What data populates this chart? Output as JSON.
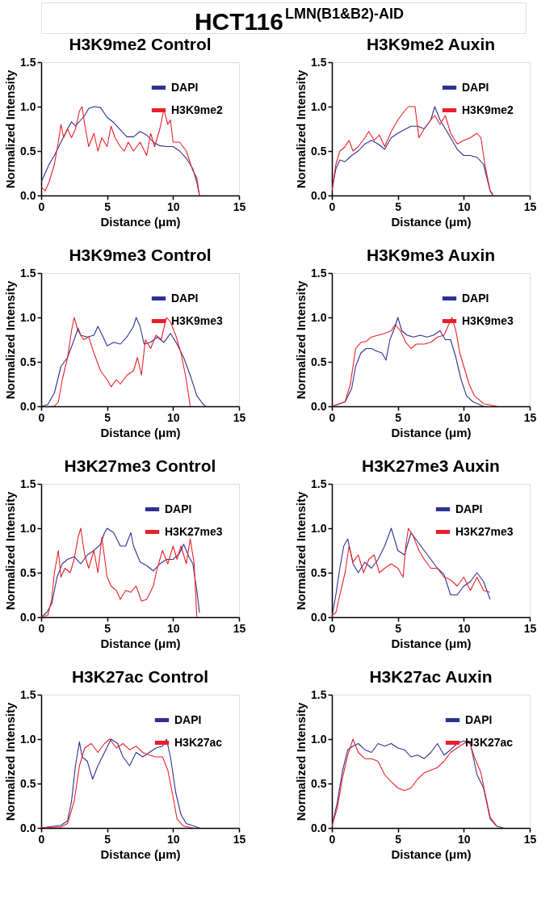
{
  "chart_data": [
    {
      "type": "line",
      "title": "H3K9me2 Control",
      "annotations": [
        "HCT116$^{LMN(B1&B2)-AID}$"
      ],
      "xlabel": "Distance (μm)",
      "ylabel": "Normalized Intensity",
      "xlim": [
        0,
        15
      ],
      "xticks": [
        0,
        5,
        10,
        15
      ],
      "ylim": [
        0,
        1.5
      ],
      "yticks": [
        {
          "value": 0,
          "label": "0.0"
        },
        {
          "value": 0.5,
          "label": "0.5"
        },
        {
          "value": 1.0,
          "label": "1.0"
        },
        {
          "value": 1.5,
          "label": "1.5"
        }
      ],
      "legend": "top right",
      "grid": false,
      "line_style": "solid",
      "series": [
        {
          "name": "DAPI",
          "color": "#2e3192",
          "x": [
            0,
            0.3,
            0.6,
            1.0,
            1.5,
            2.0,
            2.3,
            2.6,
            3.0,
            3.3,
            3.6,
            4.0,
            4.5,
            5.0,
            5.5,
            6.0,
            6.5,
            7.0,
            7.5,
            8.0,
            8.5,
            9.0,
            9.5,
            10.0,
            10.5,
            11.0,
            11.5,
            11.8,
            12.0
          ],
          "values": [
            0.15,
            0.25,
            0.35,
            0.45,
            0.6,
            0.75,
            0.83,
            0.78,
            0.85,
            0.9,
            0.98,
            1.0,
            0.99,
            0.88,
            0.82,
            0.74,
            0.66,
            0.66,
            0.72,
            0.68,
            0.6,
            0.56,
            0.55,
            0.55,
            0.5,
            0.42,
            0.3,
            0.15,
            0.0
          ]
        },
        {
          "name": "H3K9me2",
          "color": "#e8202a",
          "x": [
            0,
            0.3,
            0.6,
            1.0,
            1.3,
            1.5,
            1.7,
            2.0,
            2.3,
            2.6,
            2.9,
            3.1,
            3.3,
            3.6,
            4.0,
            4.3,
            4.6,
            5.0,
            5.3,
            5.6,
            6.0,
            6.3,
            6.6,
            7.0,
            7.5,
            8.0,
            8.3,
            8.6,
            9.0,
            9.3,
            9.6,
            9.8,
            10.0,
            10.5,
            11.0,
            11.5,
            11.8,
            12.0
          ],
          "values": [
            0.1,
            0.05,
            0.15,
            0.35,
            0.6,
            0.8,
            0.65,
            0.75,
            0.65,
            0.75,
            0.95,
            1.0,
            0.8,
            0.55,
            0.7,
            0.5,
            0.65,
            0.55,
            0.78,
            0.65,
            0.55,
            0.5,
            0.6,
            0.5,
            0.6,
            0.45,
            0.7,
            0.55,
            0.75,
            0.97,
            0.8,
            0.85,
            0.6,
            0.6,
            0.5,
            0.28,
            0.2,
            0.0
          ]
        }
      ]
    },
    {
      "type": "line",
      "title": "H3K9me2 Auxin",
      "xlabel": "Distance (μm)",
      "ylabel": "Normalized Intensity",
      "xlim": [
        0,
        15
      ],
      "xticks": [
        0,
        5,
        10,
        15
      ],
      "ylim": [
        0,
        1.5
      ],
      "yticks": [
        {
          "value": 0,
          "label": "0.0"
        },
        {
          "value": 0.5,
          "label": "0.5"
        },
        {
          "value": 1.0,
          "label": "1.0"
        },
        {
          "value": 1.5,
          "label": "1.5"
        }
      ],
      "legend": "top right",
      "grid": false,
      "line_style": "solid",
      "series": [
        {
          "name": "DAPI",
          "color": "#2e3192",
          "x": [
            0,
            0.3,
            0.6,
            1.0,
            1.5,
            2.0,
            2.5,
            3.0,
            3.5,
            4.0,
            4.5,
            5.0,
            5.5,
            6.0,
            6.5,
            7.0,
            7.5,
            7.8,
            8.2,
            8.6,
            9.0,
            9.5,
            10.0,
            10.5,
            11.0,
            11.5,
            12.0,
            12.2
          ],
          "values": [
            0.05,
            0.3,
            0.4,
            0.38,
            0.45,
            0.5,
            0.58,
            0.62,
            0.58,
            0.52,
            0.65,
            0.7,
            0.74,
            0.78,
            0.78,
            0.75,
            0.85,
            1.0,
            0.85,
            0.75,
            0.65,
            0.52,
            0.45,
            0.45,
            0.43,
            0.35,
            0.05,
            0.0
          ]
        },
        {
          "name": "H3K9me2",
          "color": "#e8202a",
          "x": [
            0,
            0.3,
            0.6,
            1.0,
            1.3,
            1.6,
            2.0,
            2.5,
            2.8,
            3.2,
            3.6,
            4.0,
            4.5,
            5.0,
            5.5,
            5.8,
            6.3,
            6.6,
            7.0,
            7.5,
            7.8,
            8.2,
            8.6,
            9.0,
            9.5,
            10.0,
            10.5,
            11.0,
            11.3,
            11.6,
            12.0,
            12.2
          ],
          "values": [
            0.05,
            0.35,
            0.5,
            0.55,
            0.62,
            0.5,
            0.55,
            0.65,
            0.72,
            0.62,
            0.68,
            0.55,
            0.72,
            0.85,
            0.95,
            1.0,
            1.0,
            0.65,
            0.75,
            0.85,
            0.9,
            0.8,
            0.9,
            0.7,
            0.58,
            0.62,
            0.65,
            0.7,
            0.65,
            0.35,
            0.05,
            0.02
          ]
        }
      ]
    },
    {
      "type": "line",
      "title": "H3K9me3 Control",
      "xlabel": "Distance (μm)",
      "ylabel": "Normalized Intensity",
      "xlim": [
        0,
        15
      ],
      "xticks": [
        0,
        5,
        10,
        15
      ],
      "ylim": [
        0,
        1.5
      ],
      "yticks": [
        {
          "value": 0,
          "label": "0.0"
        },
        {
          "value": 0.5,
          "label": "0.5"
        },
        {
          "value": 1.0,
          "label": "1.0"
        },
        {
          "value": 1.5,
          "label": "1.5"
        }
      ],
      "legend": "top right",
      "grid": false,
      "line_style": "solid",
      "series": [
        {
          "name": "DAPI",
          "color": "#2e3192",
          "x": [
            0,
            0.5,
            1.0,
            1.5,
            2.0,
            2.5,
            2.8,
            3.0,
            3.5,
            4.0,
            4.3,
            4.7,
            5.0,
            5.5,
            6.0,
            6.5,
            7.0,
            7.2,
            7.5,
            7.8,
            8.3,
            8.8,
            9.3,
            9.8,
            10.3,
            10.8,
            11.3,
            11.8,
            12.3,
            12.5
          ],
          "values": [
            0.0,
            0.02,
            0.15,
            0.45,
            0.55,
            0.75,
            0.88,
            0.8,
            0.78,
            0.8,
            0.9,
            0.78,
            0.68,
            0.72,
            0.7,
            0.78,
            0.9,
            1.0,
            0.9,
            0.7,
            0.72,
            0.78,
            0.72,
            0.82,
            0.7,
            0.55,
            0.35,
            0.12,
            0.02,
            0.0
          ]
        },
        {
          "name": "H3K9me3",
          "color": "#e8202a",
          "x": [
            0.8,
            1.0,
            1.3,
            1.6,
            2.0,
            2.3,
            2.5,
            2.8,
            3.2,
            3.6,
            4.0,
            4.5,
            5.0,
            5.3,
            5.7,
            6.0,
            6.5,
            7.0,
            7.3,
            7.6,
            7.9,
            8.3,
            8.7,
            9.1,
            9.5,
            9.8,
            10.2,
            10.6,
            11.0,
            11.3
          ],
          "values": [
            0.0,
            0.0,
            0.05,
            0.3,
            0.55,
            0.85,
            1.0,
            0.85,
            0.75,
            0.78,
            0.6,
            0.4,
            0.3,
            0.22,
            0.3,
            0.25,
            0.35,
            0.4,
            0.55,
            0.35,
            0.75,
            0.65,
            0.8,
            0.75,
            1.0,
            0.95,
            0.8,
            0.6,
            0.3,
            0.0
          ]
        }
      ]
    },
    {
      "type": "line",
      "title": "H3K9me3 Auxin",
      "xlabel": "Distance (μm)",
      "ylabel": "Normalized Intensity",
      "xlim": [
        0,
        15
      ],
      "xticks": [
        0,
        5,
        10,
        15
      ],
      "ylim": [
        0,
        1.5
      ],
      "yticks": [
        {
          "value": 0,
          "label": "0.0"
        },
        {
          "value": 0.5,
          "label": "0.5"
        },
        {
          "value": 1.0,
          "label": "1.0"
        },
        {
          "value": 1.5,
          "label": "1.5"
        }
      ],
      "legend": "top right",
      "grid": false,
      "line_style": "solid",
      "series": [
        {
          "name": "DAPI",
          "color": "#2e3192",
          "x": [
            0,
            1.0,
            1.5,
            1.8,
            2.2,
            2.6,
            3.0,
            3.4,
            3.8,
            4.1,
            4.4,
            4.8,
            5.0,
            5.3,
            5.7,
            6.2,
            6.7,
            7.2,
            7.7,
            8.2,
            8.6,
            9.0,
            9.4,
            9.8,
            10.2,
            10.7,
            11.5
          ],
          "values": [
            0.0,
            0.05,
            0.2,
            0.45,
            0.6,
            0.65,
            0.65,
            0.62,
            0.6,
            0.52,
            0.75,
            0.9,
            1.0,
            0.85,
            0.8,
            0.78,
            0.8,
            0.78,
            0.8,
            0.85,
            0.75,
            0.75,
            0.55,
            0.3,
            0.12,
            0.05,
            0.0
          ]
        },
        {
          "name": "H3K9me3",
          "color": "#e8202a",
          "x": [
            0,
            1.0,
            1.4,
            1.8,
            2.2,
            2.6,
            3.0,
            3.5,
            4.0,
            4.5,
            4.8,
            5.2,
            5.6,
            6.0,
            6.4,
            7.0,
            7.5,
            8.0,
            8.5,
            8.8,
            9.1,
            9.4,
            9.7,
            10.0,
            10.4,
            10.8,
            11.5,
            12.5
          ],
          "values": [
            0.0,
            0.05,
            0.25,
            0.65,
            0.72,
            0.73,
            0.78,
            0.8,
            0.82,
            0.85,
            0.92,
            0.85,
            0.72,
            0.65,
            0.7,
            0.7,
            0.72,
            0.78,
            0.8,
            0.9,
            1.0,
            0.85,
            0.6,
            0.45,
            0.25,
            0.12,
            0.03,
            0.0
          ]
        }
      ]
    },
    {
      "type": "line",
      "title": "H3K27me3 Control",
      "xlabel": "Distance (μm)",
      "ylabel": "Normalized Intensity",
      "xlim": [
        0,
        15
      ],
      "xticks": [
        0,
        5,
        10,
        15
      ],
      "ylim": [
        0,
        1.5
      ],
      "yticks": [
        {
          "value": 0,
          "label": "0.0"
        },
        {
          "value": 0.5,
          "label": "0.5"
        },
        {
          "value": 1.0,
          "label": "1.0"
        },
        {
          "value": 1.5,
          "label": "1.5"
        }
      ],
      "legend": "top right",
      "grid": false,
      "line_style": "solid",
      "series": [
        {
          "name": "DAPI",
          "color": "#2e3192",
          "x": [
            0,
            0.4,
            0.8,
            1.2,
            1.6,
            2.0,
            2.5,
            3.0,
            3.5,
            4.0,
            4.5,
            4.8,
            5.0,
            5.5,
            6.0,
            6.4,
            6.8,
            7.0,
            7.5,
            8.0,
            8.5,
            9.0,
            9.5,
            10.0,
            10.5,
            10.8,
            11.2,
            11.5,
            11.8,
            12.0
          ],
          "values": [
            0.0,
            0.05,
            0.15,
            0.45,
            0.6,
            0.65,
            0.68,
            0.6,
            0.7,
            0.75,
            0.82,
            0.95,
            1.0,
            0.95,
            0.8,
            0.8,
            0.95,
            0.8,
            0.62,
            0.58,
            0.52,
            0.6,
            0.65,
            0.65,
            0.72,
            0.82,
            0.68,
            0.6,
            0.3,
            0.05
          ]
        },
        {
          "name": "H3K27me3",
          "color": "#e8202a",
          "x": [
            0,
            0.5,
            0.8,
            1.0,
            1.3,
            1.5,
            1.8,
            2.2,
            2.5,
            2.8,
            3.0,
            3.3,
            3.6,
            4.0,
            4.3,
            4.6,
            5.0,
            5.3,
            5.7,
            6.0,
            6.4,
            6.8,
            7.2,
            7.6,
            8.0,
            8.5,
            8.8,
            9.2,
            9.6,
            10.0,
            10.3,
            10.6,
            11.0,
            11.3,
            11.6,
            11.8
          ],
          "values": [
            0.0,
            0.02,
            0.2,
            0.5,
            0.75,
            0.45,
            0.55,
            0.5,
            0.65,
            0.9,
            1.0,
            0.7,
            0.55,
            0.75,
            0.5,
            0.9,
            0.45,
            0.35,
            0.3,
            0.2,
            0.3,
            0.28,
            0.35,
            0.18,
            0.2,
            0.35,
            0.55,
            0.75,
            0.6,
            0.8,
            0.65,
            0.8,
            0.6,
            0.88,
            0.6,
            0.0
          ]
        }
      ]
    },
    {
      "type": "line",
      "title": "H3K27me3 Auxin",
      "xlabel": "Distance (μm)",
      "ylabel": "Normalized Intensity",
      "xlim": [
        0,
        15
      ],
      "xticks": [
        0,
        5,
        10,
        15
      ],
      "ylim": [
        0,
        1.5
      ],
      "yticks": [
        {
          "value": 0,
          "label": "0.0"
        },
        {
          "value": 0.5,
          "label": "0.5"
        },
        {
          "value": 1.0,
          "label": "1.0"
        },
        {
          "value": 1.5,
          "label": "1.5"
        }
      ],
      "legend": "top right",
      "grid": false,
      "line_style": "solid",
      "series": [
        {
          "name": "DAPI",
          "color": "#2e3192",
          "x": [
            0,
            0.3,
            0.6,
            0.9,
            1.2,
            1.6,
            2.0,
            2.5,
            3.0,
            3.5,
            4.0,
            4.5,
            5.0,
            5.5,
            6.0,
            6.5,
            7.0,
            7.5,
            8.0,
            8.5,
            9.0,
            9.5,
            10.0,
            10.5,
            11.0,
            11.5,
            12.0
          ],
          "values": [
            0.0,
            0.25,
            0.55,
            0.8,
            0.88,
            0.6,
            0.5,
            0.62,
            0.55,
            0.65,
            0.8,
            1.0,
            0.75,
            0.7,
            0.95,
            0.85,
            0.75,
            0.65,
            0.55,
            0.48,
            0.25,
            0.25,
            0.35,
            0.4,
            0.5,
            0.4,
            0.2
          ]
        },
        {
          "name": "H3K27me3",
          "color": "#e8202a",
          "x": [
            0,
            0.3,
            0.6,
            1.0,
            1.3,
            1.6,
            2.0,
            2.4,
            2.8,
            3.2,
            3.6,
            4.0,
            4.5,
            5.0,
            5.4,
            5.6,
            5.8,
            6.2,
            6.6,
            7.0,
            7.5,
            8.0,
            8.5,
            9.0,
            9.5,
            10.0,
            10.5,
            11.0,
            11.5,
            12.0
          ],
          "values": [
            0.02,
            0.05,
            0.25,
            0.5,
            0.8,
            0.62,
            0.7,
            0.5,
            0.65,
            0.7,
            0.5,
            0.55,
            0.6,
            0.55,
            0.45,
            0.8,
            1.0,
            0.9,
            0.75,
            0.65,
            0.55,
            0.55,
            0.45,
            0.42,
            0.35,
            0.45,
            0.3,
            0.45,
            0.3,
            0.28
          ]
        }
      ]
    },
    {
      "type": "line",
      "title": "H3K27ac Control",
      "xlabel": "Distance (μm)",
      "ylabel": "Normalized Intensity",
      "xlim": [
        0,
        15
      ],
      "xticks": [
        0,
        5,
        10,
        15
      ],
      "ylim": [
        0,
        1.5
      ],
      "yticks": [
        {
          "value": 0,
          "label": "0.0"
        },
        {
          "value": 0.5,
          "label": "0.5"
        },
        {
          "value": 1.0,
          "label": "1.0"
        },
        {
          "value": 1.5,
          "label": "1.5"
        }
      ],
      "legend": "top right",
      "grid": false,
      "line_style": "solid",
      "series": [
        {
          "name": "DAPI",
          "color": "#2e3192",
          "x": [
            0,
            1.0,
            1.5,
            2.0,
            2.3,
            2.6,
            2.9,
            3.1,
            3.5,
            3.9,
            4.3,
            4.8,
            5.3,
            5.8,
            6.2,
            6.7,
            7.2,
            7.7,
            8.2,
            8.7,
            9.2,
            9.5,
            9.8,
            10.2,
            10.6,
            11.0,
            12.0
          ],
          "values": [
            0.0,
            0.02,
            0.03,
            0.08,
            0.3,
            0.7,
            0.97,
            0.8,
            0.75,
            0.55,
            0.7,
            0.85,
            1.0,
            0.95,
            0.8,
            0.7,
            0.85,
            0.8,
            0.85,
            0.9,
            0.92,
            1.0,
            0.8,
            0.4,
            0.15,
            0.05,
            0.0
          ]
        },
        {
          "name": "H3K27ac",
          "color": "#e8202a",
          "x": [
            0,
            1.5,
            2.0,
            2.5,
            2.9,
            3.3,
            3.8,
            4.3,
            4.8,
            5.2,
            5.7,
            6.2,
            6.7,
            7.2,
            7.7,
            8.2,
            8.7,
            9.2,
            9.6,
            10.0,
            10.3,
            10.8,
            11.5
          ],
          "values": [
            0.0,
            0.01,
            0.05,
            0.3,
            0.7,
            0.9,
            0.95,
            0.85,
            0.95,
            1.0,
            0.9,
            0.95,
            0.88,
            0.92,
            0.85,
            0.82,
            0.8,
            0.8,
            0.65,
            0.35,
            0.1,
            0.02,
            0.0
          ]
        }
      ]
    },
    {
      "type": "line",
      "title": "H3K27ac Auxin",
      "xlabel": "Distance (μm)",
      "ylabel": "Normalized Intensity",
      "xlim": [
        0,
        15
      ],
      "xticks": [
        0,
        5,
        10,
        15
      ],
      "ylim": [
        0,
        1.5
      ],
      "yticks": [
        {
          "value": 0,
          "label": "0.0"
        },
        {
          "value": 0.5,
          "label": "0.5"
        },
        {
          "value": 1.0,
          "label": "1.0"
        },
        {
          "value": 1.5,
          "label": "1.5"
        }
      ],
      "legend": "top right",
      "grid": false,
      "line_style": "solid",
      "series": [
        {
          "name": "DAPI",
          "color": "#2e3192",
          "x": [
            0,
            0.4,
            0.8,
            1.2,
            1.6,
            2.0,
            2.5,
            3.0,
            3.5,
            4.0,
            4.5,
            5.0,
            5.5,
            6.0,
            6.5,
            7.0,
            7.5,
            8.0,
            8.5,
            9.0,
            9.5,
            10.0,
            10.5,
            11.0,
            11.5,
            12.0,
            12.5,
            13.0
          ],
          "values": [
            0.02,
            0.28,
            0.64,
            0.88,
            0.92,
            0.95,
            0.88,
            0.85,
            0.95,
            0.92,
            0.95,
            0.9,
            0.88,
            0.8,
            0.82,
            0.78,
            0.85,
            0.95,
            0.82,
            0.88,
            0.95,
            0.98,
            0.95,
            0.6,
            0.45,
            0.1,
            0.02,
            0.0
          ]
        },
        {
          "name": "H3K27ac",
          "color": "#e8202a",
          "x": [
            0,
            0.4,
            0.8,
            1.2,
            1.6,
            2.0,
            2.5,
            3.0,
            3.5,
            4.0,
            4.5,
            5.0,
            5.5,
            6.0,
            6.5,
            7.0,
            7.5,
            8.0,
            8.5,
            9.0,
            9.5,
            10.0,
            10.4,
            10.8,
            11.3,
            11.6,
            12.0,
            12.5
          ],
          "values": [
            0.02,
            0.22,
            0.56,
            0.82,
            1.0,
            0.85,
            0.78,
            0.78,
            0.75,
            0.6,
            0.52,
            0.45,
            0.42,
            0.45,
            0.55,
            0.62,
            0.65,
            0.68,
            0.75,
            0.85,
            0.9,
            0.95,
            0.98,
            0.8,
            0.62,
            0.4,
            0.12,
            0.02
          ]
        }
      ]
    }
  ]
}
